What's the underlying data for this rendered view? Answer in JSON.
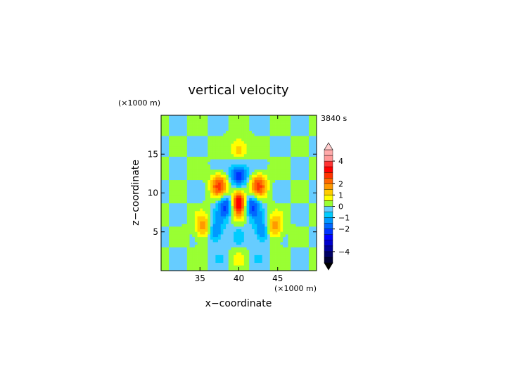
{
  "chart_data": {
    "type": "heatmap",
    "title": "vertical velocity",
    "xlabel": "x−coordinate",
    "ylabel": "z−coordinate",
    "x_unit": "(×1000 m)",
    "y_unit": "(×1000 m)",
    "time_label": "3840 s",
    "xlim": [
      30,
      50
    ],
    "ylim": [
      0,
      20
    ],
    "x_ticks": [
      35,
      40,
      45
    ],
    "y_ticks": [
      5,
      10,
      15
    ],
    "x_tick_labels": [
      "35",
      "40",
      "45"
    ],
    "y_tick_labels": [
      "5",
      "10",
      "15"
    ],
    "colorbar": {
      "min": -5,
      "max": 5,
      "step": 0.5,
      "tick_values": [
        4,
        2,
        1,
        0,
        -1,
        -2,
        -4
      ],
      "tick_labels": [
        "4",
        "2",
        "1",
        "0",
        "−1",
        "−2",
        "−4"
      ],
      "extend": "both",
      "colors": [
        "#000033",
        "#000066",
        "#000099",
        "#0000cc",
        "#0000ff",
        "#0033ff",
        "#0066ff",
        "#0099ff",
        "#00ccff",
        "#66ccff",
        "#99ff33",
        "#ffff00",
        "#ffcc00",
        "#ff9900",
        "#ff6600",
        "#ff3300",
        "#ff0000",
        "#ff3333",
        "#ff9999",
        "#ffaaaa"
      ],
      "over_color": "#ffcccc",
      "under_color": "#000000"
    },
    "grid": false,
    "field_features": [
      {
        "kind": "updraft",
        "x": 40,
        "z": 9,
        "value": 4.5
      },
      {
        "kind": "downdraft",
        "x": 40,
        "z": 12.5,
        "value": -3
      },
      {
        "kind": "updraft",
        "x": 37.5,
        "z": 11,
        "value": 2.5
      },
      {
        "kind": "updraft",
        "x": 42.5,
        "z": 11,
        "value": 2.5
      },
      {
        "kind": "downdraft",
        "x": 38.5,
        "z": 8.5,
        "value": -2.5
      },
      {
        "kind": "downdraft",
        "x": 41.5,
        "z": 8.5,
        "value": -2.5
      },
      {
        "kind": "updraft",
        "x": 35.5,
        "z": 5.5,
        "value": 2
      },
      {
        "kind": "updraft",
        "x": 44.5,
        "z": 5.5,
        "value": 2
      },
      {
        "kind": "downdraft",
        "x": 37,
        "z": 5,
        "value": -2
      },
      {
        "kind": "downdraft",
        "x": 43,
        "z": 5,
        "value": -2
      },
      {
        "kind": "updraft",
        "x": 40,
        "z": 15.5,
        "value": 1.5
      }
    ]
  }
}
